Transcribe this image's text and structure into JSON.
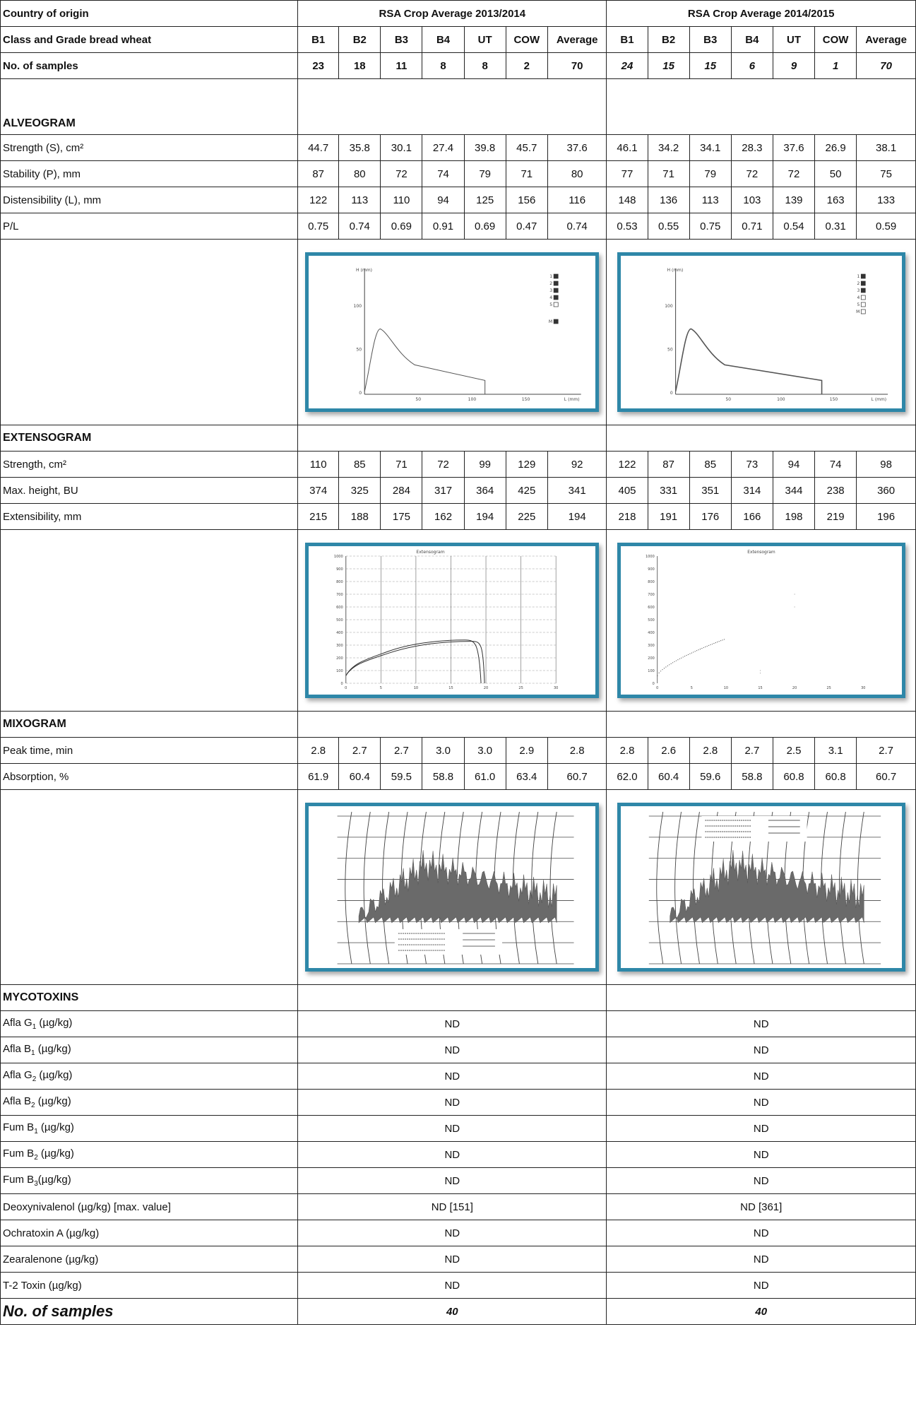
{
  "header": {
    "country_label": "Country of origin",
    "class_label": "Class and Grade bread wheat",
    "samples_label": "No. of samples",
    "season1": "RSA Crop Average 2013/2014",
    "season2": "RSA Crop Average 2014/2015",
    "grades": [
      "B1",
      "B2",
      "B3",
      "B4",
      "UT",
      "COW",
      "Average"
    ],
    "samples1": [
      "23",
      "18",
      "11",
      "8",
      "8",
      "2",
      "70"
    ],
    "samples2": [
      "24",
      "15",
      "15",
      "6",
      "9",
      "1",
      "70"
    ]
  },
  "alveogram": {
    "title": "ALVEOGRAM",
    "rows": [
      {
        "label": "Strength (S), cm²",
        "s1": [
          "44.7",
          "35.8",
          "30.1",
          "27.4",
          "39.8",
          "45.7",
          "37.6"
        ],
        "s2": [
          "46.1",
          "34.2",
          "34.1",
          "28.3",
          "37.6",
          "26.9",
          "38.1"
        ]
      },
      {
        "label": "Stability (P), mm",
        "s1": [
          "87",
          "80",
          "72",
          "74",
          "79",
          "71",
          "80"
        ],
        "s2": [
          "77",
          "71",
          "79",
          "72",
          "72",
          "50",
          "75"
        ]
      },
      {
        "label": "Distensibility (L), mm",
        "s1": [
          "122",
          "113",
          "110",
          "94",
          "125",
          "156",
          "116"
        ],
        "s2": [
          "148",
          "136",
          "113",
          "103",
          "139",
          "163",
          "133"
        ]
      },
      {
        "label": "P/L",
        "s1": [
          "0.75",
          "0.74",
          "0.69",
          "0.91",
          "0.69",
          "0.47",
          "0.74"
        ],
        "s2": [
          "0.53",
          "0.55",
          "0.75",
          "0.71",
          "0.54",
          "0.31",
          "0.59"
        ]
      }
    ],
    "chart1": {
      "yaxis_label": "H (mm)",
      "ticks_y": [
        "100",
        "50",
        "0"
      ],
      "ticks_x": [
        "50",
        "100",
        "150"
      ],
      "xaxis_label": "L (mm)",
      "legend": [
        "1",
        "2",
        "3",
        "4",
        "5",
        "M"
      ]
    },
    "chart2": {
      "yaxis_label": "H (mm)",
      "ticks_y": [
        "100",
        "50",
        "0"
      ],
      "ticks_x": [
        "50",
        "100",
        "150"
      ],
      "xaxis_label": "L (mm)",
      "legend": [
        "1",
        "2",
        "3",
        "4",
        "5",
        "M"
      ]
    }
  },
  "extensogram": {
    "title": "EXTENSOGRAM",
    "rows": [
      {
        "label": "Strength, cm²",
        "s1": [
          "110",
          "85",
          "71",
          "72",
          "99",
          "129",
          "92"
        ],
        "s2": [
          "122",
          "87",
          "85",
          "73",
          "94",
          "74",
          "98"
        ]
      },
      {
        "label": "Max. height, BU",
        "s1": [
          "374",
          "325",
          "284",
          "317",
          "364",
          "425",
          "341"
        ],
        "s2": [
          "405",
          "331",
          "351",
          "314",
          "344",
          "238",
          "360"
        ]
      },
      {
        "label": "Extensibility, mm",
        "s1": [
          "215",
          "188",
          "175",
          "162",
          "194",
          "225",
          "194"
        ],
        "s2": [
          "218",
          "191",
          "176",
          "166",
          "198",
          "219",
          "196"
        ]
      }
    ],
    "chart_title": "Extensogram",
    "ticks_y": [
      "1000",
      "900",
      "800",
      "700",
      "600",
      "500",
      "400",
      "300",
      "200",
      "100",
      "0"
    ],
    "ticks_x": [
      "0",
      "5",
      "10",
      "15",
      "20",
      "25",
      "30"
    ]
  },
  "mixogram": {
    "title": "MIXOGRAM",
    "rows": [
      {
        "label": "Peak time, min",
        "s1": [
          "2.8",
          "2.7",
          "2.7",
          "3.0",
          "3.0",
          "2.9",
          "2.8"
        ],
        "s2": [
          "2.8",
          "2.6",
          "2.8",
          "2.7",
          "2.5",
          "3.1",
          "2.7"
        ]
      },
      {
        "label": "Absorption, %",
        "s1": [
          "61.9",
          "60.4",
          "59.5",
          "58.8",
          "61.0",
          "63.4",
          "60.7"
        ],
        "s2": [
          "62.0",
          "60.4",
          "59.6",
          "58.8",
          "60.8",
          "60.8",
          "60.7"
        ]
      }
    ]
  },
  "mycotoxins": {
    "title": "MYCOTOXINS",
    "rows": [
      {
        "label": "Afla G",
        "sub": "1",
        "unit": " (µg/kg)",
        "s1": "ND",
        "s2": "ND"
      },
      {
        "label": "Afla B",
        "sub": "1",
        "unit": " (µg/kg)",
        "s1": "ND",
        "s2": "ND"
      },
      {
        "label": "Afla G",
        "sub": "2",
        "unit": " (µg/kg)",
        "s1": "ND",
        "s2": "ND"
      },
      {
        "label": "Afla B",
        "sub": "2",
        "unit": " (µg/kg)",
        "s1": "ND",
        "s2": "ND"
      },
      {
        "label": "Fum B",
        "sub": "1",
        "unit": " (µg/kg)",
        "s1": "ND",
        "s2": "ND"
      },
      {
        "label": "Fum B",
        "sub": "2",
        "unit": " (µg/kg)",
        "s1": "ND",
        "s2": "ND"
      },
      {
        "label": "Fum B",
        "sub": "3",
        "unit": "(µg/kg)",
        "s1": "ND",
        "s2": "ND"
      },
      {
        "label": "Deoxynivalenol (µg/kg) [max. value]",
        "sub": "",
        "unit": "",
        "s1": "ND [151]",
        "s2": "ND [361]"
      },
      {
        "label": "Ochratoxin A (µg/kg)",
        "sub": "",
        "unit": "",
        "s1": "ND",
        "s2": "ND"
      },
      {
        "label": "Zearalenone (µg/kg)",
        "sub": "",
        "unit": "",
        "s1": "ND",
        "s2": "ND"
      },
      {
        "label": "T-2 Toxin (µg/kg)",
        "sub": "",
        "unit": "",
        "s1": "ND",
        "s2": "ND"
      }
    ],
    "footer_label": "No. of samples",
    "footer_s1": "40",
    "footer_s2": "40"
  },
  "colors": {
    "frame": "#2e87a8",
    "curve": "#555555"
  }
}
